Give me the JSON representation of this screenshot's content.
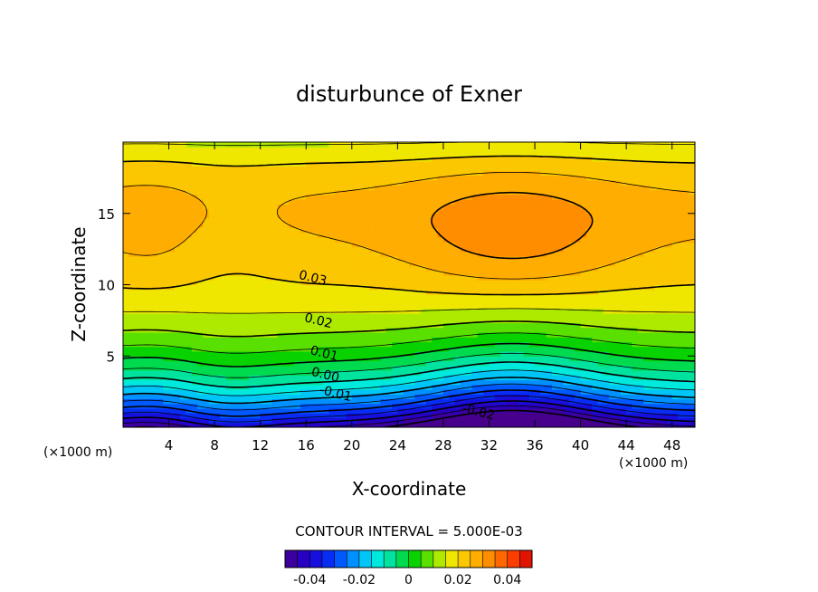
{
  "chart_data": {
    "type": "heatmap",
    "title": "disturbunce of Exner",
    "xlabel": "X-coordinate",
    "ylabel": "Z-coordinate",
    "x_unit_left": "(×1000 m)",
    "x_unit_right": "(×1000 m)",
    "xlim": [
      0,
      50
    ],
    "ylim": [
      0,
      20
    ],
    "x_ticks": [
      4,
      8,
      12,
      16,
      20,
      24,
      28,
      32,
      36,
      40,
      44,
      48
    ],
    "y_ticks": [
      5,
      10,
      15
    ],
    "contour_interval_text": "CONTOUR INTERVAL = 5.000E-03",
    "contour_interval": 0.005,
    "contour_labels": [
      {
        "text": "0.03",
        "x": 16.5,
        "y": 10.2
      },
      {
        "text": "0.02",
        "x": 17.0,
        "y": 7.2
      },
      {
        "text": "0.01",
        "x": 17.5,
        "y": 4.9
      },
      {
        "text": "0.00",
        "x": 17.6,
        "y": 3.4
      },
      {
        "text": "-0.01",
        "x": 18.5,
        "y": 2.1
      },
      {
        "text": "-0.02",
        "x": 31.0,
        "y": 0.8
      }
    ],
    "colorbar": {
      "min": -0.05,
      "max": 0.05,
      "ticks": [
        "-0.04",
        "-0.02",
        "0",
        "0.02",
        "0.04"
      ],
      "tick_values": [
        -0.04,
        -0.02,
        0,
        0.02,
        0.04
      ]
    }
  }
}
